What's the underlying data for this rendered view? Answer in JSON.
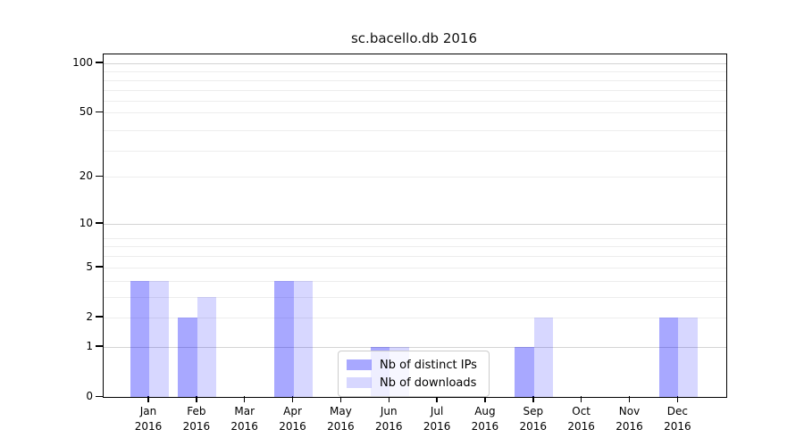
{
  "chart_data": {
    "type": "bar",
    "title": "sc.bacello.db 2016",
    "categories": [
      "Jan",
      "Feb",
      "Mar",
      "Apr",
      "May",
      "Jun",
      "Jul",
      "Aug",
      "Sep",
      "Oct",
      "Nov",
      "Dec"
    ],
    "category_year": "2016",
    "series": [
      {
        "name": "Nb of distinct IPs",
        "color": "rgba(0,0,255,0.34)",
        "values": [
          4,
          2,
          0,
          4,
          0,
          1,
          0,
          0,
          1,
          0,
          0,
          2
        ]
      },
      {
        "name": "Nb of downloads",
        "color": "rgba(0,0,255,0.155)",
        "values": [
          4,
          3,
          0,
          4,
          0,
          1,
          0,
          0,
          2,
          0,
          0,
          2
        ]
      }
    ],
    "y_scale": "log10(1+x)",
    "y_ticks": [
      0,
      1,
      2,
      5,
      10,
      20,
      50,
      100
    ],
    "y_minor_gridlines": [
      3,
      4,
      6,
      7,
      8,
      29,
      39,
      59,
      69,
      79,
      89
    ],
    "ylim": [
      0,
      113
    ],
    "grid": true,
    "legend_position": "lower center inside",
    "colors": {
      "grid_major": "#d4d4d4",
      "grid_minor": "#ededed",
      "axis": "#000000",
      "background": "#ffffff"
    }
  }
}
